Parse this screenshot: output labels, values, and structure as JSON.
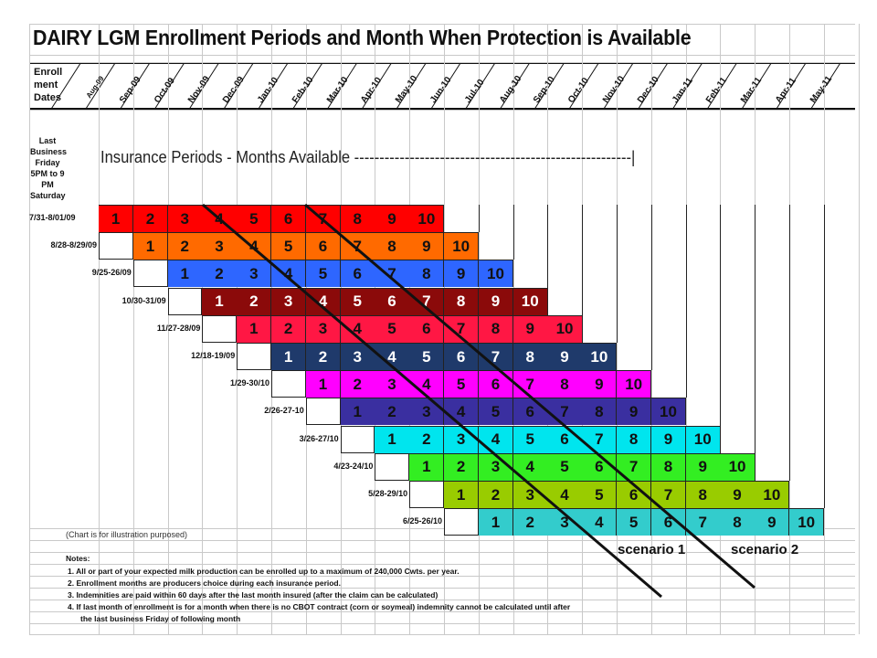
{
  "title": "DAIRY LGM Enrollment Periods and Month When Protection is Available",
  "header": {
    "enrollment_label": "Enroll ment Dates",
    "last_friday_label": "Last Business Friday 5PM to 9 PM Saturday",
    "insurance_label": "Insurance Periods - Months Available -------------------------------------------------------|"
  },
  "months": [
    "Aug-09",
    "Sep-09",
    "Oct-09",
    "Nov-09",
    "Dec-09",
    "Jan-10",
    "Feb-10",
    "Mar-10",
    "Apr-10",
    "May-10",
    "Jun-10",
    "Jul-10",
    "Aug-10",
    "Sep-10",
    "Oct-10",
    "Nov-10",
    "Dec-10",
    "Jan-11",
    "Feb-11",
    "Mar-11",
    "Apr-11",
    "May-11"
  ],
  "rows": [
    {
      "label": "7/31-8/01/09",
      "color": "#ff0000",
      "text": "#111111"
    },
    {
      "label": "8/28-8/29/09",
      "color": "#ff6a00",
      "text": "#111111"
    },
    {
      "label": "9/25-26/09",
      "color": "#2e66ff",
      "text": "#111111"
    },
    {
      "label": "10/30-31/09",
      "color": "#8b0a0a",
      "text": "#ffffff"
    },
    {
      "label": "11/27-28/09",
      "color": "#ff1744",
      "text": "#111111"
    },
    {
      "label": "12/18-19/09",
      "color": "#1f3a6b",
      "text": "#ffffff"
    },
    {
      "label": "1/29-30/10",
      "color": "#ff00ff",
      "text": "#111111"
    },
    {
      "label": "2/26-27-10",
      "color": "#3a2fa0",
      "text": "#111111"
    },
    {
      "label": "3/26-27/10",
      "color": "#00e5ee",
      "text": "#111111"
    },
    {
      "label": "4/23-24/10",
      "color": "#33ee22",
      "text": "#111111"
    },
    {
      "label": "5/28-29/10",
      "color": "#99cc00",
      "text": "#111111"
    },
    {
      "label": "6/25-26/10",
      "color": "#33cccc",
      "text": "#111111"
    }
  ],
  "period_numbers": [
    "1",
    "2",
    "3",
    "4",
    "5",
    "6",
    "7",
    "8",
    "9",
    "10"
  ],
  "illustration_note": "(Chart is for illustration purposed)",
  "scenarios": [
    "scenario 1",
    "scenario 2"
  ],
  "notes": {
    "heading": "Notes:",
    "items": [
      "1. All or part of your expected milk production can be enrolled up to a maximum of 240,000 Cwts. per year.",
      "2. Enrollment months are producers choice during each insurance period.",
      "3. Indemnities are paid within 60 days after the last month insured (after the claim can be calculated)",
      "4. If last month of enrollment is for a month when there is no CBOT contract (corn or soymeal) indemnity cannot be calculated until after",
      "the last business Friday of following month"
    ]
  }
}
